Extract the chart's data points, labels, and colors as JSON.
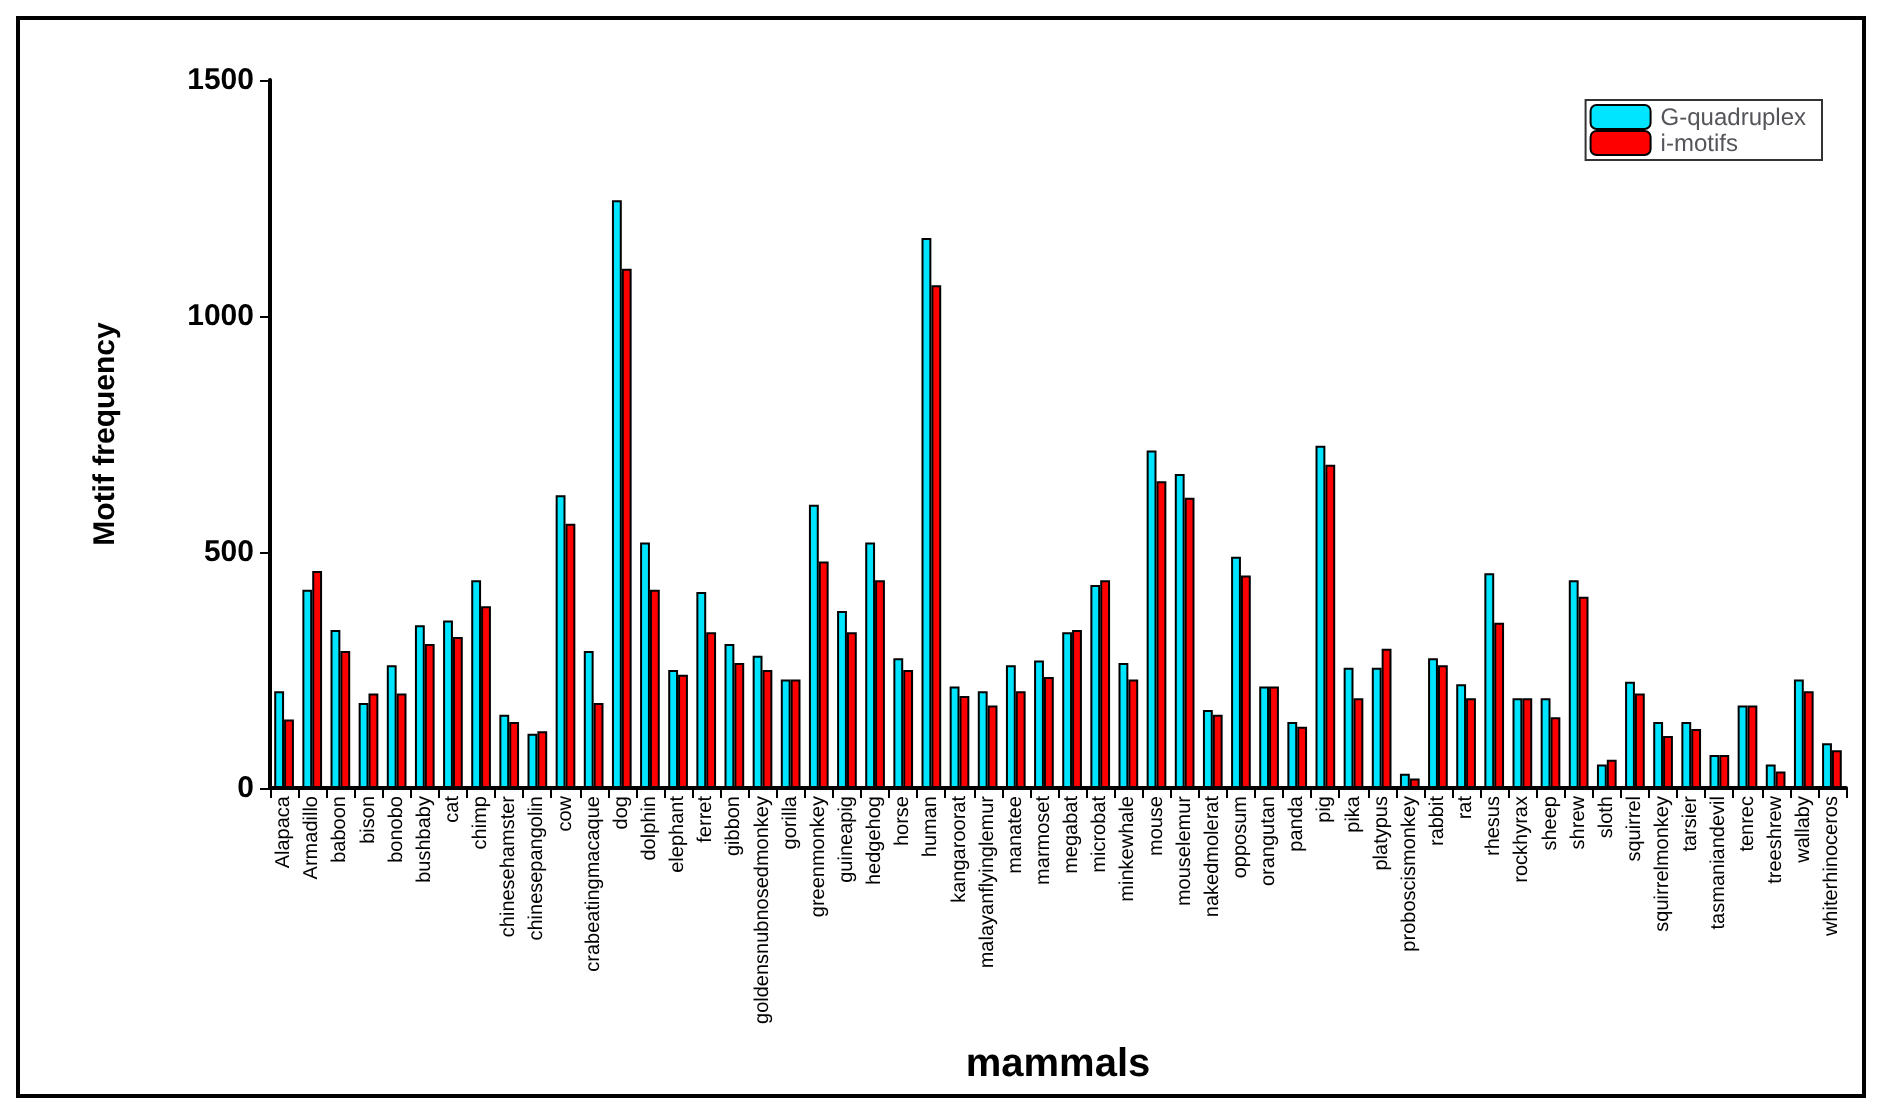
{
  "chart_data": {
    "type": "bar",
    "xlabel": "mammals",
    "ylabel": "Motif frequency",
    "categories": [
      "Alapaca",
      "Armadillo",
      "baboon",
      "bison",
      "bonobo",
      "bushbaby",
      "cat",
      "chimp",
      "chinesehamster",
      "chinesepangolin",
      "cow",
      "crabeatingmacaque",
      "dog",
      "dolphin",
      "elephant",
      "ferret",
      "gibbon",
      "goldensnubnosedmonkey",
      "gorilla",
      "greenmonkey",
      "guineapig",
      "hedgehog",
      "horse",
      "human",
      "kangaroorat",
      "malayanflyinglemur",
      "manatee",
      "marmoset",
      "megabat",
      "microbat",
      "minkewhale",
      "mouse",
      "mouselemur",
      "nakedmolerat",
      "opposum",
      "orangutan",
      "panda",
      "pig",
      "pika",
      "platypus",
      "proboscismonkey",
      "rabbit",
      "rat",
      "rhesus",
      "rockhyrax",
      "sheep",
      "shrew",
      "sloth",
      "squirrel",
      "squirrelmonkey",
      "tarsier",
      "tasmaniandevil",
      "tenrec",
      "treeshrew",
      "wallaby",
      "whiterhinoceros"
    ],
    "series": [
      {
        "name": "G-quadruplex",
        "color": "#00e5ff",
        "values": [
          205,
          420,
          335,
          180,
          260,
          345,
          355,
          440,
          155,
          115,
          620,
          290,
          1245,
          520,
          250,
          415,
          305,
          280,
          230,
          600,
          375,
          520,
          275,
          1165,
          215,
          205,
          260,
          270,
          330,
          430,
          265,
          715,
          665,
          165,
          490,
          215,
          140,
          725,
          255,
          255,
          30,
          275,
          220,
          455,
          190,
          190,
          440,
          50,
          225,
          140,
          140,
          70,
          175,
          50,
          230,
          95
        ]
      },
      {
        "name": "i-motifs",
        "color": "#ff0000",
        "values": [
          145,
          460,
          290,
          200,
          200,
          305,
          320,
          385,
          140,
          120,
          560,
          180,
          1100,
          420,
          240,
          330,
          265,
          250,
          230,
          480,
          330,
          440,
          250,
          1065,
          195,
          175,
          205,
          235,
          335,
          440,
          230,
          650,
          615,
          155,
          450,
          215,
          130,
          685,
          190,
          295,
          20,
          260,
          190,
          350,
          190,
          150,
          405,
          60,
          200,
          110,
          125,
          70,
          175,
          35,
          205,
          80
        ]
      }
    ],
    "ylim": [
      0,
      1500
    ],
    "yticks": [
      0,
      500,
      1000,
      1500
    ],
    "grid": false,
    "legend": "top right"
  }
}
